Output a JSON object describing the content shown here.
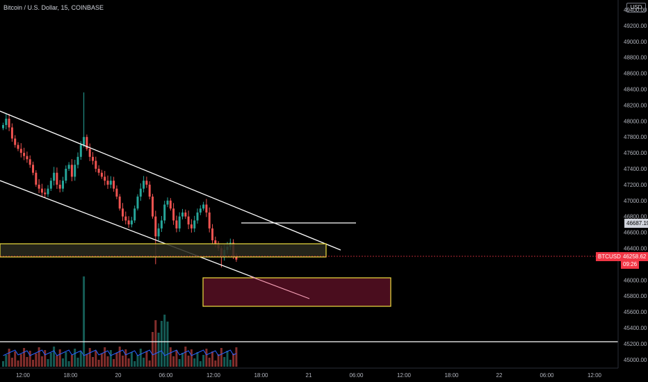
{
  "header": {
    "title": "Bitcoin / U.S. Dollar, 15, COINBASE",
    "currency_label": "USD"
  },
  "colors": {
    "background": "#000000",
    "up": "#26a69a",
    "down": "#ef5350",
    "zone_yellow": "#f0e040",
    "zone_fill": "#4a0d1e",
    "line": "#ffffff",
    "vol_ma": "#2962ff",
    "price_axis_tag": "#f23645"
  },
  "price_tags": {
    "level_price": "46687.19",
    "symbol": "BTCUSD",
    "last_price": "46258.62",
    "countdown": "09:26"
  },
  "chart_data": {
    "type": "candlestick",
    "title": "Bitcoin / U.S. Dollar, 15, COINBASE",
    "y_axis_ticks": [
      "49400.00",
      "49200.00",
      "49000.00",
      "48800.00",
      "48600.00",
      "48400.00",
      "48200.00",
      "48000.00",
      "47800.00",
      "47600.00",
      "47400.00",
      "47200.00",
      "47000.00",
      "46800.00",
      "46600.00",
      "46400.00",
      "46000.00",
      "45800.00",
      "45600.00",
      "45400.00",
      "45200.00",
      "45000.00"
    ],
    "x_axis_ticks": [
      "12:00",
      "18:00",
      "20",
      "06:00",
      "12:00",
      "18:00",
      "21",
      "06:00",
      "12:00",
      "18:00",
      "22",
      "06:00",
      "12:00"
    ],
    "ylim": [
      44900,
      49500
    ],
    "price_series": [
      47950,
      48030,
      47920,
      47780,
      47700,
      47650,
      47600,
      47560,
      47520,
      47450,
      47350,
      47200,
      47150,
      47100,
      47080,
      47150,
      47250,
      47350,
      47200,
      47150,
      47250,
      47400,
      47450,
      47300,
      47450,
      47550,
      47700,
      47800,
      47650,
      47550,
      47500,
      47400,
      47350,
      47300,
      47250,
      47200,
      47250,
      47150,
      47050,
      46900,
      46800,
      46750,
      46700,
      46750,
      46900,
      47050,
      47150,
      47250,
      47200,
      47050,
      46800,
      46550,
      46650,
      46750,
      46950,
      47000,
      46900,
      46750,
      46650,
      46800,
      46850,
      46800,
      46700,
      46650,
      46750,
      46850,
      46900,
      46950,
      46850,
      46650,
      46500,
      46450,
      46400,
      46300,
      46380,
      46420,
      46470,
      46300,
      46258.62
    ],
    "levels": [
      {
        "label": "46687.19",
        "price": 46687.19
      },
      {
        "label": "45150",
        "price": 45150
      }
    ],
    "annotations": [
      "descending channel upper line",
      "descending channel lower line",
      "yellow support zone 46300-46420",
      "demand zone 45620-45990",
      "projection arrow"
    ]
  }
}
